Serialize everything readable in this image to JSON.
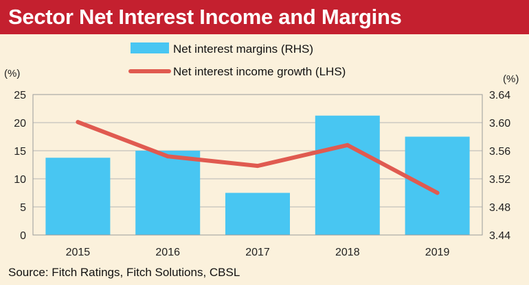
{
  "header": {
    "title": "Sector Net Interest Income and Margins"
  },
  "footer": {
    "source": "Source: Fitch Ratings, Fitch Solutions, CBSL"
  },
  "colors": {
    "title_bg": "#c4202f",
    "bars": "#48c6f2",
    "line": "#e05a50",
    "background": "#fbf1dc"
  },
  "chart_data": {
    "type": "bar",
    "categories": [
      "2015",
      "2016",
      "2017",
      "2018",
      "2019"
    ],
    "series": [
      {
        "name": "Net interest margins (RHS)",
        "type": "bar",
        "axis": "right",
        "values": [
          3.55,
          3.56,
          3.5,
          3.61,
          3.58
        ]
      },
      {
        "name": "Net interest income growth (LHS)",
        "type": "line",
        "axis": "left",
        "values": [
          20.1,
          14.0,
          12.3,
          16.0,
          7.5
        ]
      }
    ],
    "left_axis": {
      "unit": "(%)",
      "ylim": [
        0,
        25
      ],
      "ticks": [
        "0",
        "5",
        "10",
        "15",
        "20",
        "25"
      ]
    },
    "right_axis": {
      "unit": "(%)",
      "ylim": [
        3.44,
        3.64
      ],
      "ticks": [
        "3.44",
        "3.48",
        "3.52",
        "3.56",
        "3.60",
        "3.64"
      ]
    },
    "grid": "horizontal",
    "legend_position": "top-center"
  }
}
